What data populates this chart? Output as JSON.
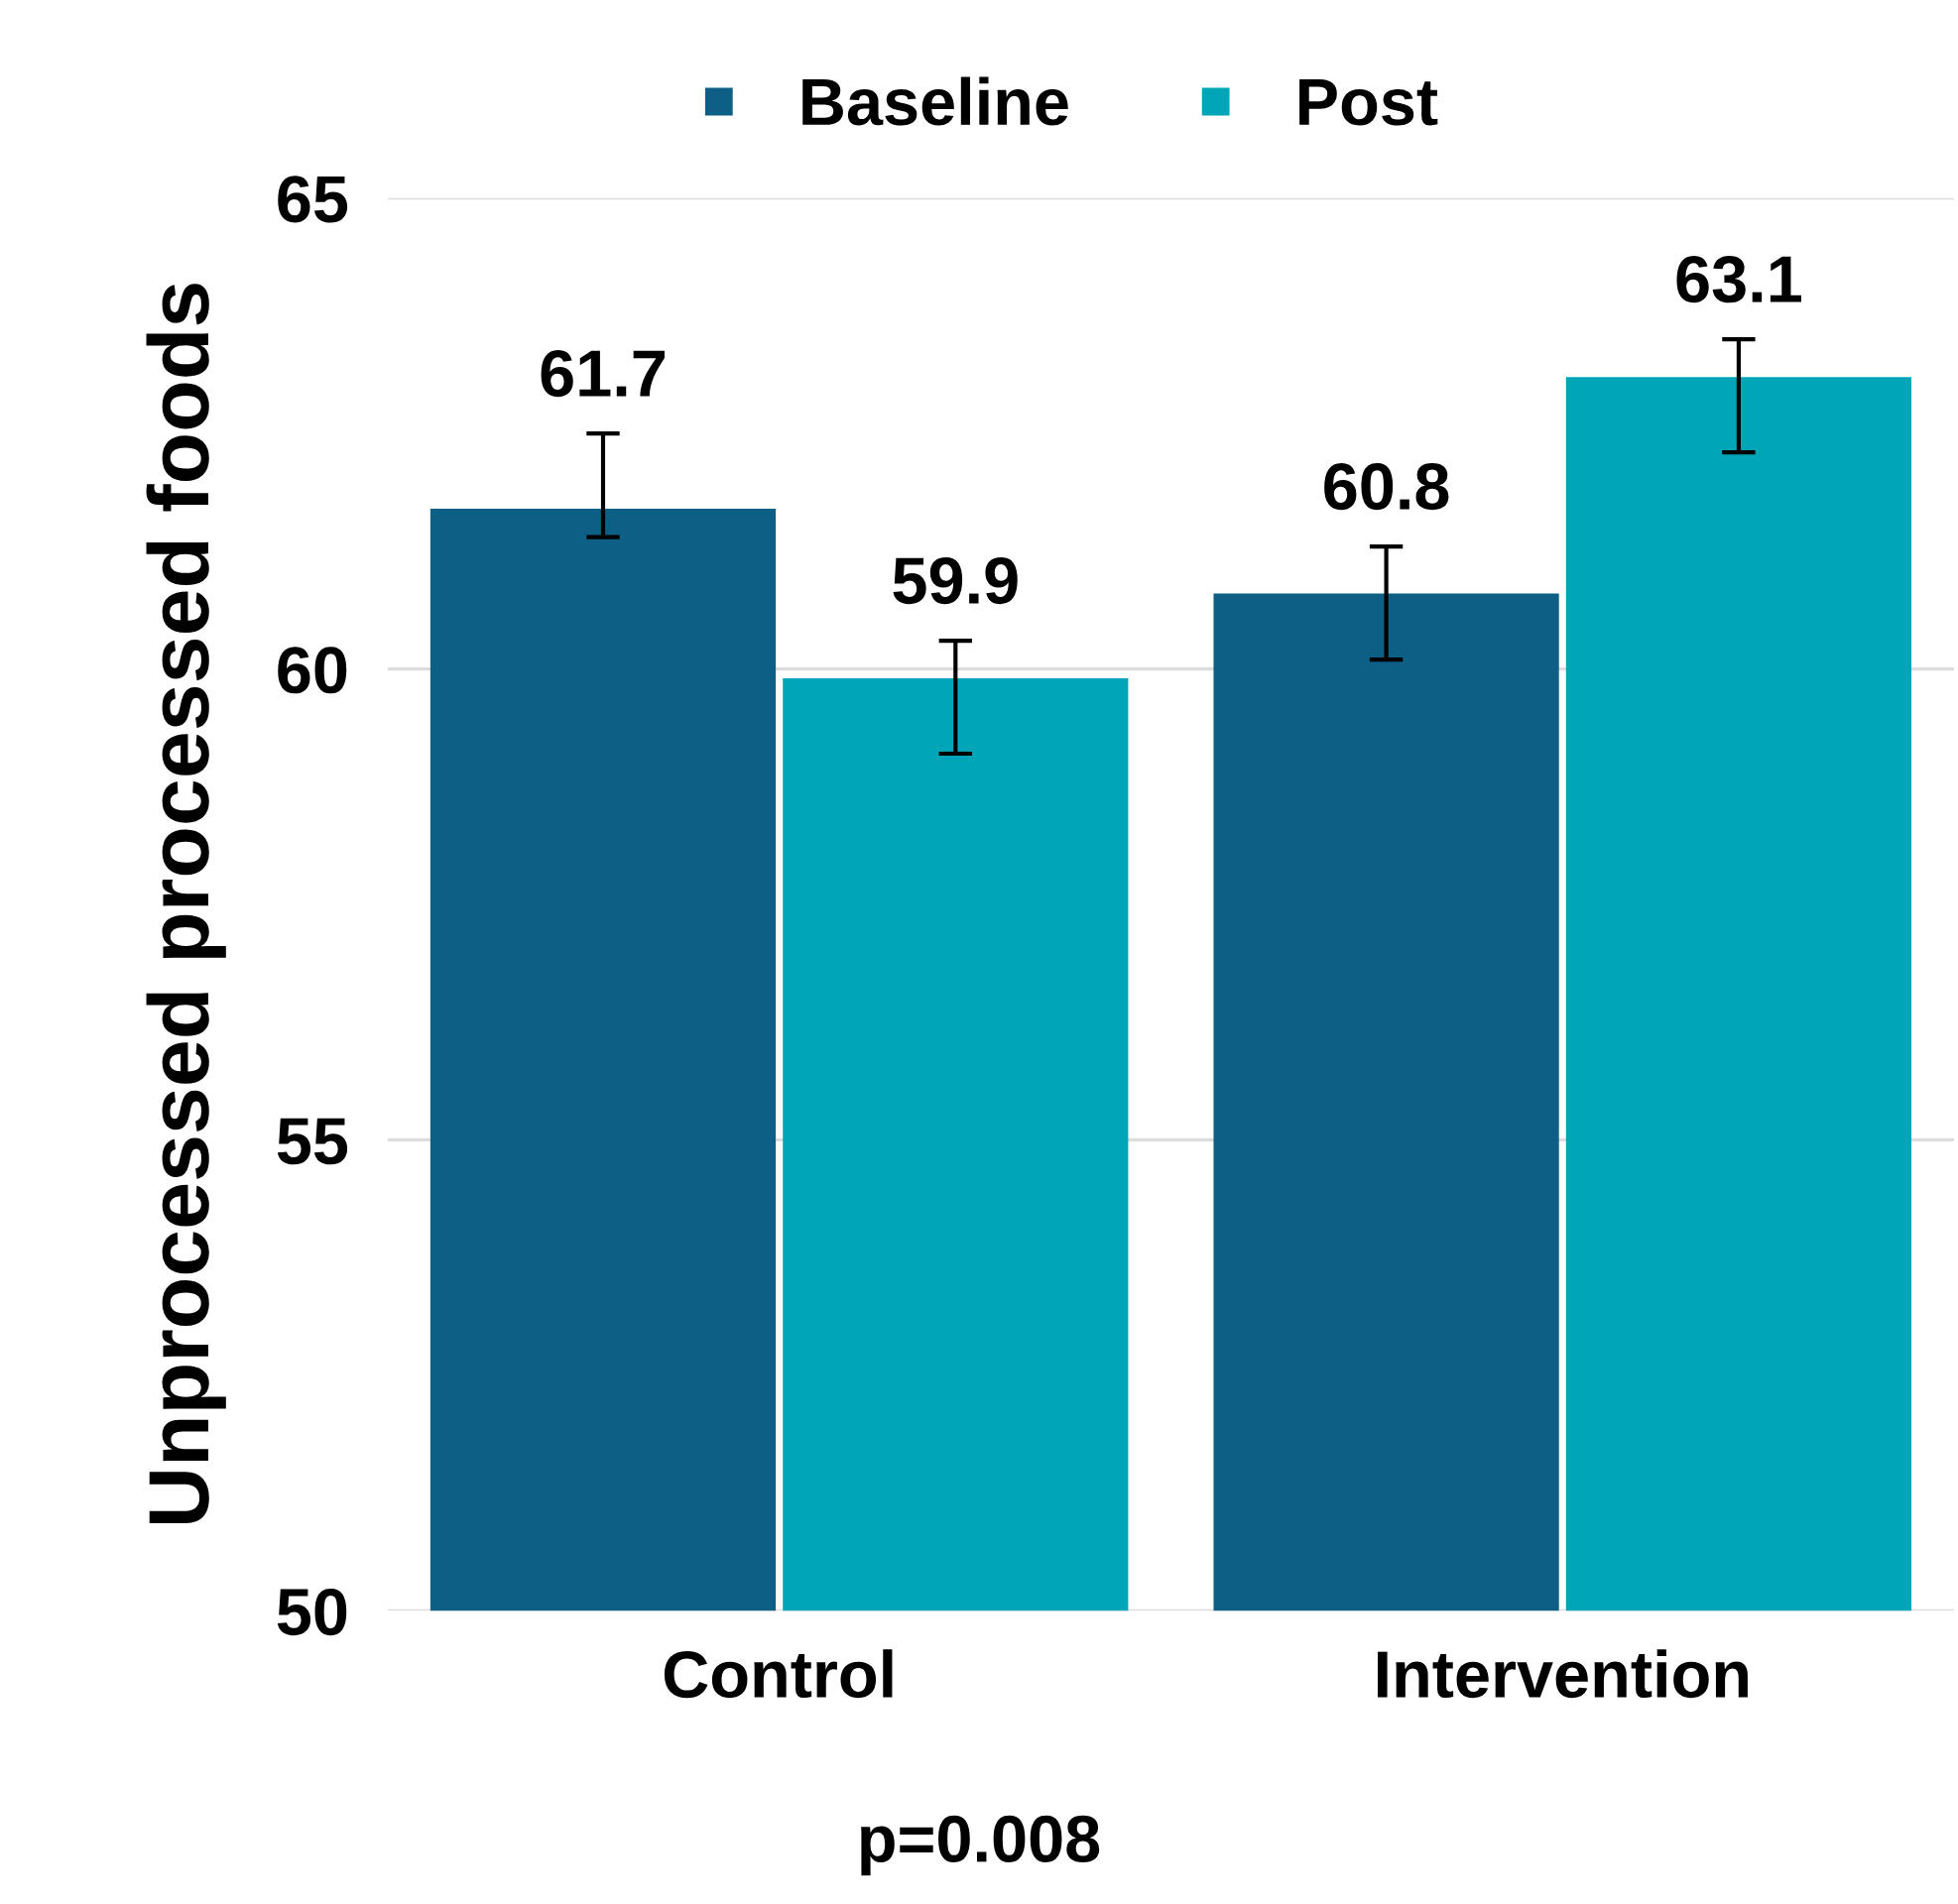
{
  "chart_data": {
    "type": "bar",
    "ylabel": "Unprocessed processed foods",
    "categories": [
      "Control",
      "Intervention"
    ],
    "series": [
      {
        "name": "Baseline",
        "color": "#0d5f86",
        "values": [
          61.7,
          60.8
        ],
        "errors": [
          [
            61.4,
            62.5
          ],
          [
            60.1,
            61.3
          ]
        ]
      },
      {
        "name": "Post",
        "color": "#00a6b8",
        "values": [
          59.9,
          63.1
        ],
        "errors": [
          [
            59.1,
            60.3
          ],
          [
            62.3,
            63.5
          ]
        ]
      }
    ],
    "ylim": [
      50,
      65
    ],
    "yticks": [
      50,
      55,
      60,
      65
    ],
    "grid": "y",
    "legend": "top",
    "data_labels": true,
    "annotations": [
      "p=0.008"
    ]
  }
}
